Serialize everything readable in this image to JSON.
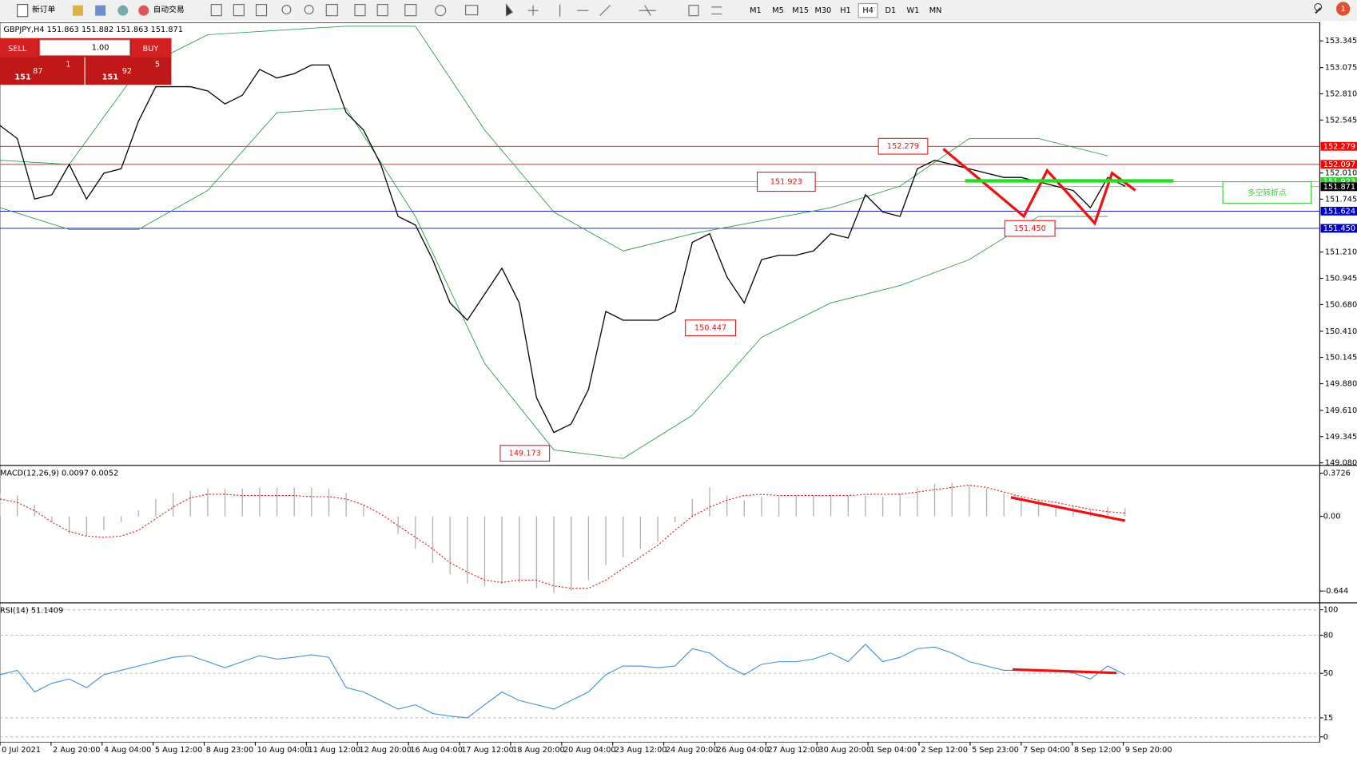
{
  "toolbar": {
    "new_order": "新订单",
    "auto_trading": "自动交易",
    "timeframes": [
      "M1",
      "M5",
      "M15",
      "M30",
      "H1",
      "H4",
      "D1",
      "W1",
      "MN"
    ],
    "active_timeframe": "H4",
    "notifications": "1"
  },
  "trade_panel": {
    "sell": "SELL",
    "buy": "BUY",
    "lots": "1.00",
    "bid_big": "151",
    "bid_pips": "87",
    "bid_frac": "1",
    "ask_big": "151",
    "ask_pips": "92",
    "ask_frac": "5"
  },
  "price_chart": {
    "header": "GBPJPY,H4  151.863 151.882 151.863 151.871",
    "ylim": [
      149.063,
      153.512
    ],
    "yticks": [
      153.345,
      153.075,
      {
        "value": 152.81,
        "label": "152.810"
      },
      152.545,
      {
        "value": 152.01,
        "label": "152.010"
      },
      151.745,
      {
        "value": 151.21,
        "label": "151.210"
      },
      150.945,
      {
        "value": 150.68,
        "label": "150.680"
      },
      {
        "value": 150.41,
        "label": "150.410"
      },
      150.145,
      {
        "value": 149.88,
        "label": "149.880"
      },
      {
        "value": 149.61,
        "label": "149.610"
      },
      149.345,
      {
        "value": 149.08,
        "label": "149.080"
      }
    ],
    "levels": [
      {
        "value": 152.279,
        "color": "#ff0000"
      },
      {
        "value": 152.097,
        "color": "#ff0000"
      },
      {
        "value": 151.923,
        "color": "#33cc33"
      },
      {
        "value": 151.871,
        "color": "#000000"
      },
      {
        "value": 151.624,
        "color": "#0000cc"
      },
      {
        "value": 151.45,
        "label": "151.450",
        "color": "#0000cc"
      }
    ],
    "annotations": [
      "152.279",
      "151.923",
      "151.450",
      "150.447",
      "149.173"
    ],
    "pivot_note": "多空转折点",
    "close": [
      152.489,
      152.358,
      151.746,
      151.79,
      152.096,
      151.746,
      152.008,
      152.052,
      152.533,
      152.882,
      152.882,
      152.882,
      152.839,
      152.708,
      152.795,
      153.057,
      152.97,
      153.014,
      153.101,
      153.101,
      152.62,
      152.445,
      152.096,
      151.571,
      151.484,
      151.134,
      150.697,
      150.522,
      150.785,
      151.047,
      150.697,
      149.736,
      149.386,
      149.473,
      149.823,
      150.61,
      150.522,
      150.522,
      150.522,
      150.61,
      151.309,
      151.396,
      150.959,
      150.697,
      151.134,
      151.178,
      151.178,
      151.222,
      151.396,
      151.353,
      151.79,
      151.615,
      151.571,
      152.052,
      152.139,
      152.096,
      152.052,
      152.008,
      151.965,
      151.965,
      151.921,
      151.877,
      151.833,
      151.659,
      151.965,
      151.877
    ],
    "upper_band": [
      152.139,
      152.096,
      153.057,
      153.407,
      153.451,
      153.494,
      153.494,
      152.445,
      151.615,
      151.222,
      151.396,
      151.527,
      151.659,
      151.877,
      152.358,
      152.358,
      152.183
    ],
    "lower_band": [
      151.659,
      151.44,
      151.44,
      151.833,
      152.62,
      152.664,
      151.571,
      150.085,
      149.211,
      149.124,
      149.561,
      150.348,
      150.697,
      150.872,
      151.134,
      151.571,
      151.571
    ],
    "dates": [
      "0 Jul 2021",
      "2 Aug 20:00",
      "4 Aug 04:00",
      "5 Aug 12:00",
      "8 Aug 23:00",
      "10 Aug 04:00",
      "11 Aug 12:00",
      "12 Aug 20:00",
      "16 Aug 04:00",
      "17 Aug 12:00",
      "18 Aug 20:00",
      "20 Aug 04:00",
      "23 Aug 12:00",
      "24 Aug 20:00",
      "26 Aug 04:00",
      "27 Aug 12:00",
      "30 Aug 20:00",
      "1 Sep 04:00",
      "2 Sep 12:00",
      "5 Sep 23:00",
      "7 Sep 04:00",
      "8 Sep 12:00",
      "9 Sep 20:00"
    ]
  },
  "macd": {
    "label": "MACD(12,26,9) 0.0097 0.0052",
    "ylim": [
      -0.731,
      0.425
    ],
    "yticks": [
      0.3726,
      {
        "value": 0,
        "label": "0.00"
      },
      -0.644
    ],
    "histogram": [
      0.2,
      0.18,
      0.1,
      -0.05,
      -0.15,
      -0.17,
      -0.12,
      -0.05,
      0.05,
      0.15,
      0.2,
      0.22,
      0.24,
      0.24,
      0.24,
      0.25,
      0.25,
      0.25,
      0.25,
      0.24,
      0.2,
      0.1,
      0,
      -0.15,
      -0.28,
      -0.4,
      -0.5,
      -0.58,
      -0.6,
      -0.58,
      -0.57,
      -0.62,
      -0.66,
      -0.64,
      -0.55,
      -0.42,
      -0.35,
      -0.28,
      -0.22,
      -0.05,
      0.15,
      0.25,
      0.18,
      0.14,
      0.17,
      0.17,
      0.18,
      0.18,
      0.19,
      0.18,
      0.18,
      0.17,
      0.2,
      0.25,
      0.28,
      0.29,
      0.27,
      0.24,
      0.2,
      0.15,
      0.13,
      0.1,
      0.09,
      0.06,
      0.08,
      0.07
    ],
    "signal": [
      0.15,
      0.12,
      0.05,
      -0.05,
      -0.13,
      -0.17,
      -0.18,
      -0.17,
      -0.12,
      -0.02,
      0.08,
      0.16,
      0.19,
      0.19,
      0.18,
      0.18,
      0.18,
      0.18,
      0.17,
      0.17,
      0.15,
      0.1,
      0.02,
      -0.08,
      -0.18,
      -0.28,
      -0.4,
      -0.48,
      -0.55,
      -0.57,
      -0.55,
      -0.55,
      -0.6,
      -0.62,
      -0.62,
      -0.55,
      -0.45,
      -0.35,
      -0.25,
      -0.12,
      0,
      0.08,
      0.14,
      0.18,
      0.19,
      0.18,
      0.18,
      0.18,
      0.18,
      0.18,
      0.19,
      0.19,
      0.19,
      0.21,
      0.23,
      0.25,
      0.27,
      0.25,
      0.21,
      0.17,
      0.14,
      0.12,
      0.09,
      0.06,
      0.04,
      0.03
    ]
  },
  "rsi": {
    "label": "RSI(14) 51.1409",
    "ylim": [
      -4.1,
      104.1
    ],
    "yticks": [
      100,
      80,
      50,
      15,
      0
    ],
    "values": [
      49,
      52.4,
      35.4,
      42.2,
      45.6,
      38.8,
      49,
      52.4,
      55.8,
      59.2,
      62.6,
      63.9,
      59.2,
      54.4,
      59.2,
      63.9,
      61.2,
      62.6,
      64.6,
      62.6,
      38.8,
      35.4,
      28.6,
      21.8,
      25.2,
      18.4,
      16.3,
      15,
      25.2,
      35.4,
      28.6,
      25.2,
      21.8,
      28.6,
      35.4,
      49,
      55.8,
      55.8,
      54.4,
      55.8,
      69.4,
      66,
      55.8,
      49,
      57.1,
      59.2,
      59.2,
      61.2,
      66,
      59.2,
      72.8,
      59.2,
      62.6,
      69.4,
      70.7,
      66,
      59.2,
      55.8,
      52.4,
      52.4,
      52.4,
      52.4,
      50.3,
      45.6,
      55.8,
      49
    ]
  }
}
